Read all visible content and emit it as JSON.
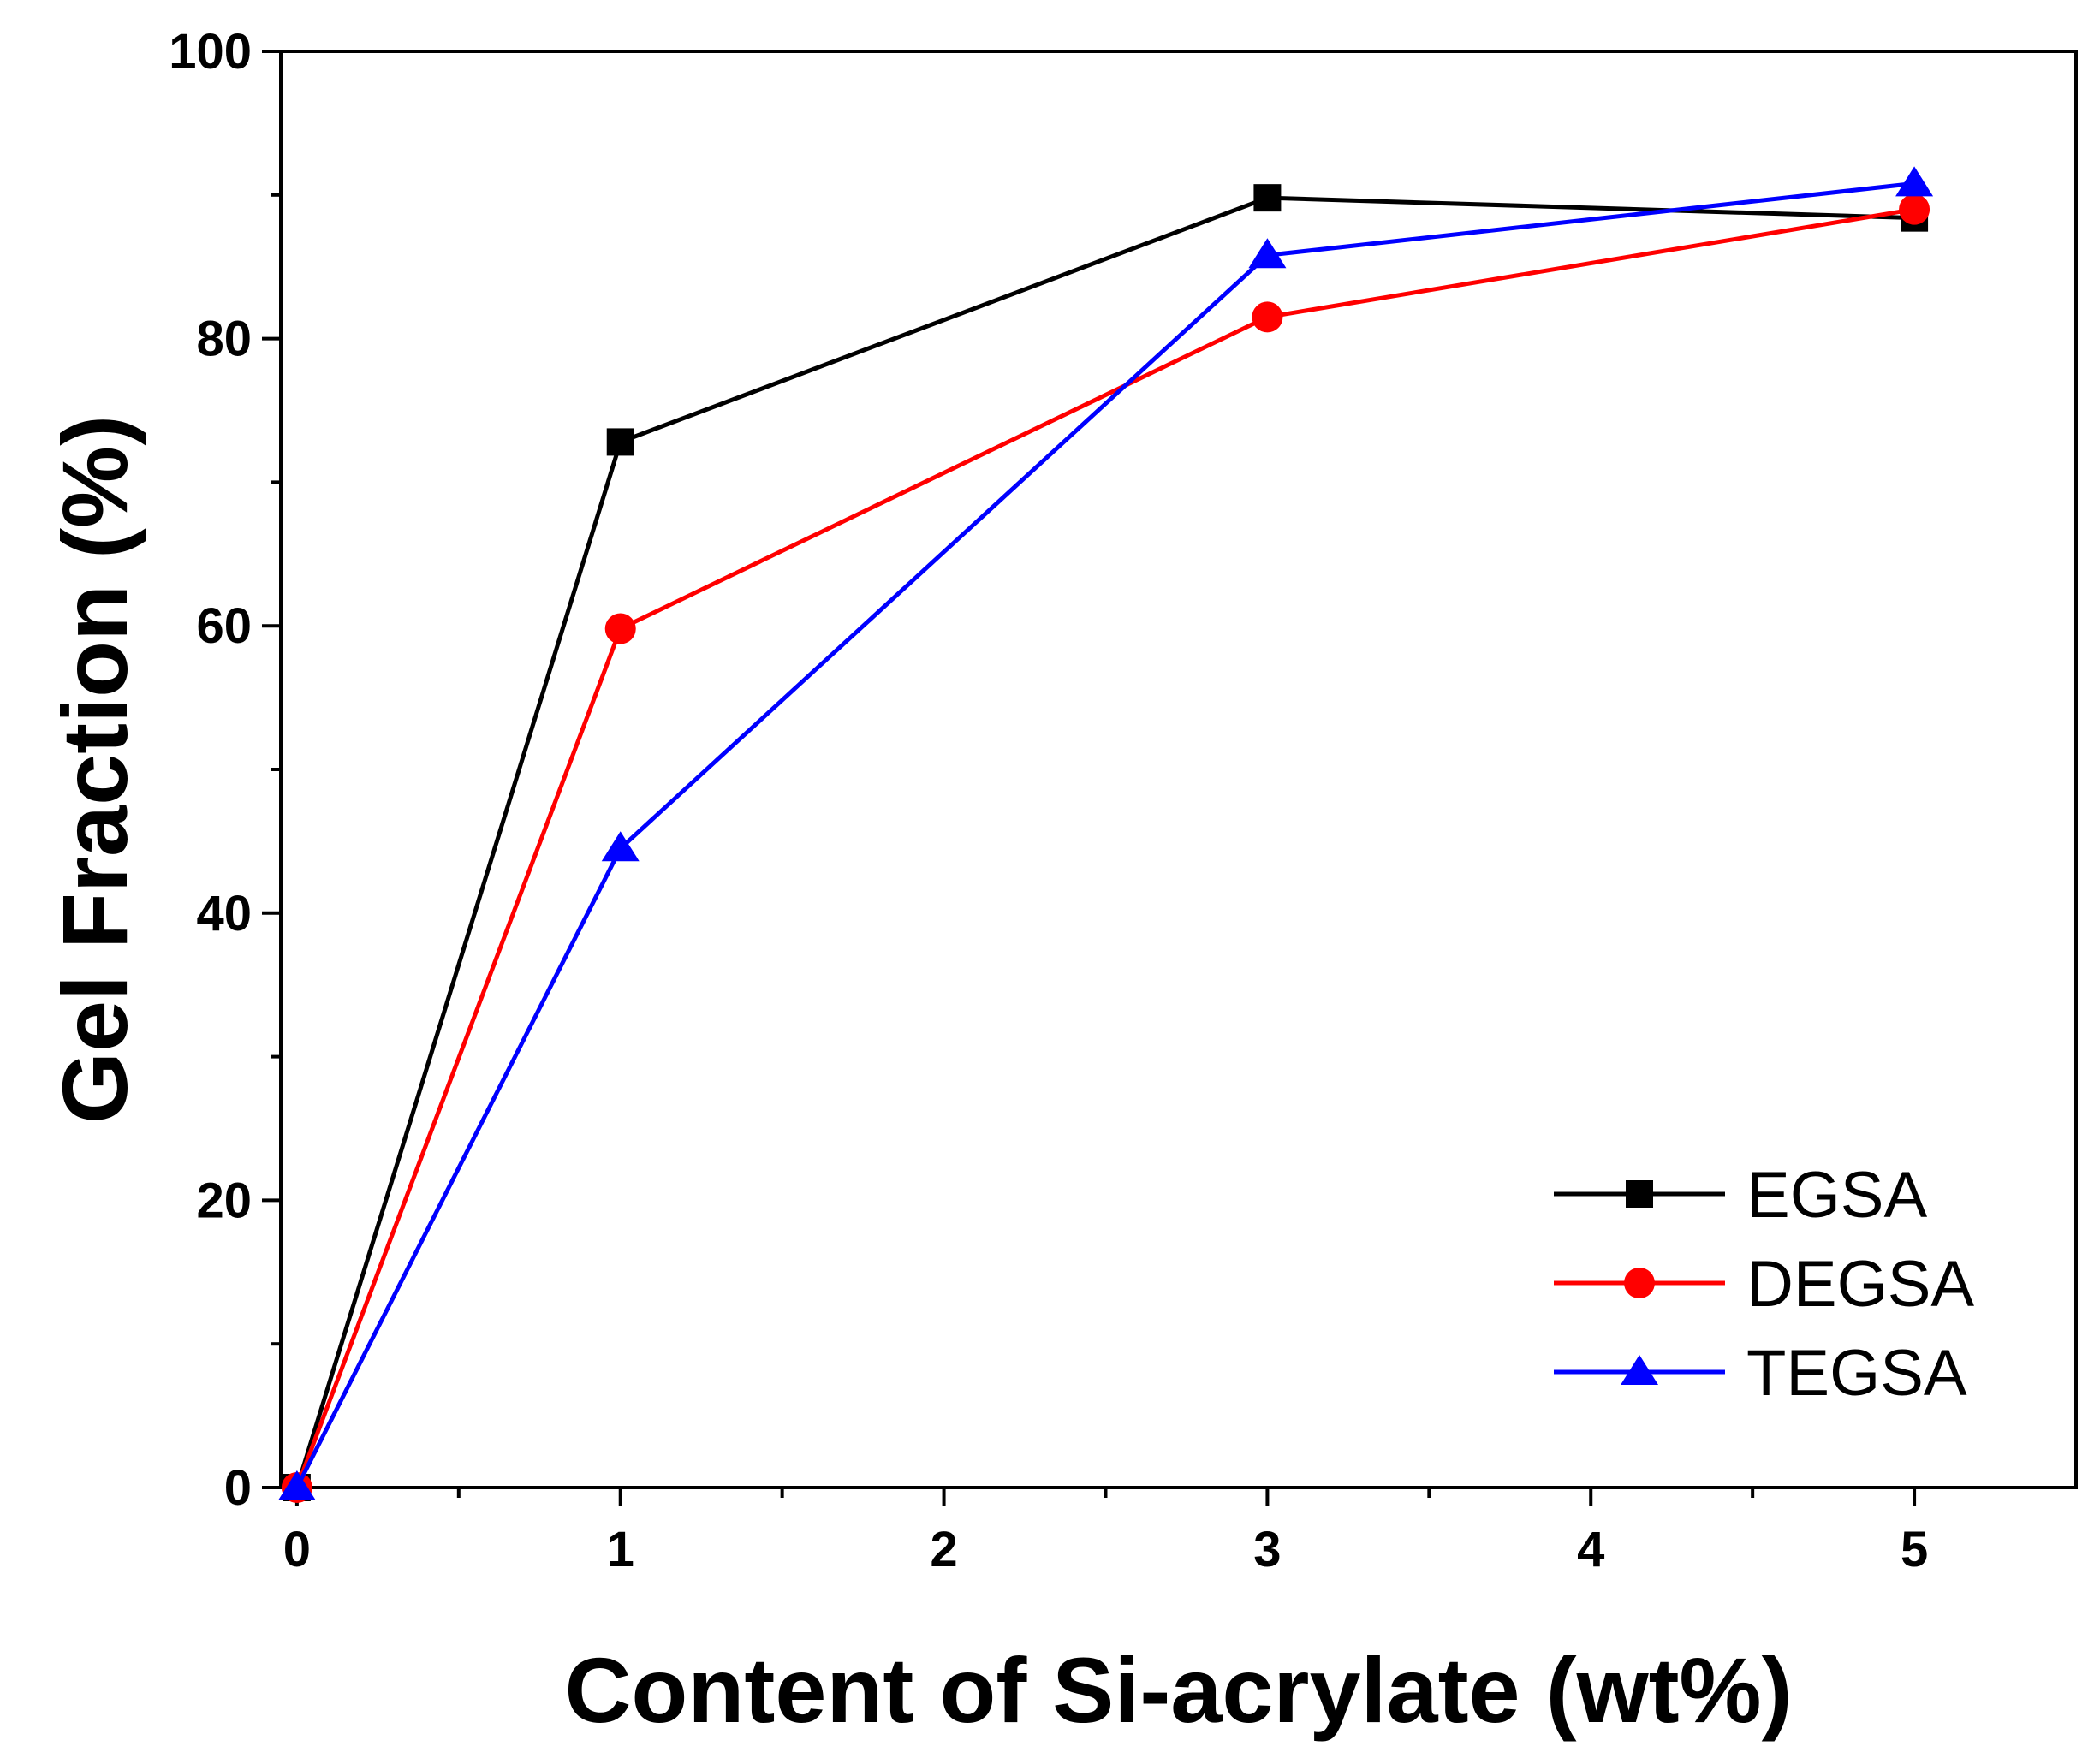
{
  "chart_data": {
    "type": "line",
    "title": "",
    "xlabel": "Content of Si-acrylate (wt%)",
    "ylabel": "Gel Fraction (%)",
    "xlim": [
      -0.05,
      5.5
    ],
    "ylim": [
      0,
      100
    ],
    "x_ticks": [
      "0",
      "1",
      "2",
      "3",
      "4",
      "5"
    ],
    "y_ticks": [
      "0",
      "20",
      "40",
      "60",
      "80",
      "100"
    ],
    "grid": false,
    "legend_position": "bottom-right",
    "x": [
      0,
      1,
      3,
      5
    ],
    "series": [
      {
        "name": "EGSA",
        "values": [
          0,
          72.8,
          89.8,
          88.4
        ],
        "color": "#000000",
        "marker": "square"
      },
      {
        "name": "DEGSA",
        "values": [
          0,
          59.8,
          81.5,
          89.0
        ],
        "color": "#ff0000",
        "marker": "circle"
      },
      {
        "name": "TEGSA",
        "values": [
          0,
          44.5,
          85.8,
          90.8
        ],
        "color": "#0000ff",
        "marker": "triangle"
      }
    ]
  }
}
